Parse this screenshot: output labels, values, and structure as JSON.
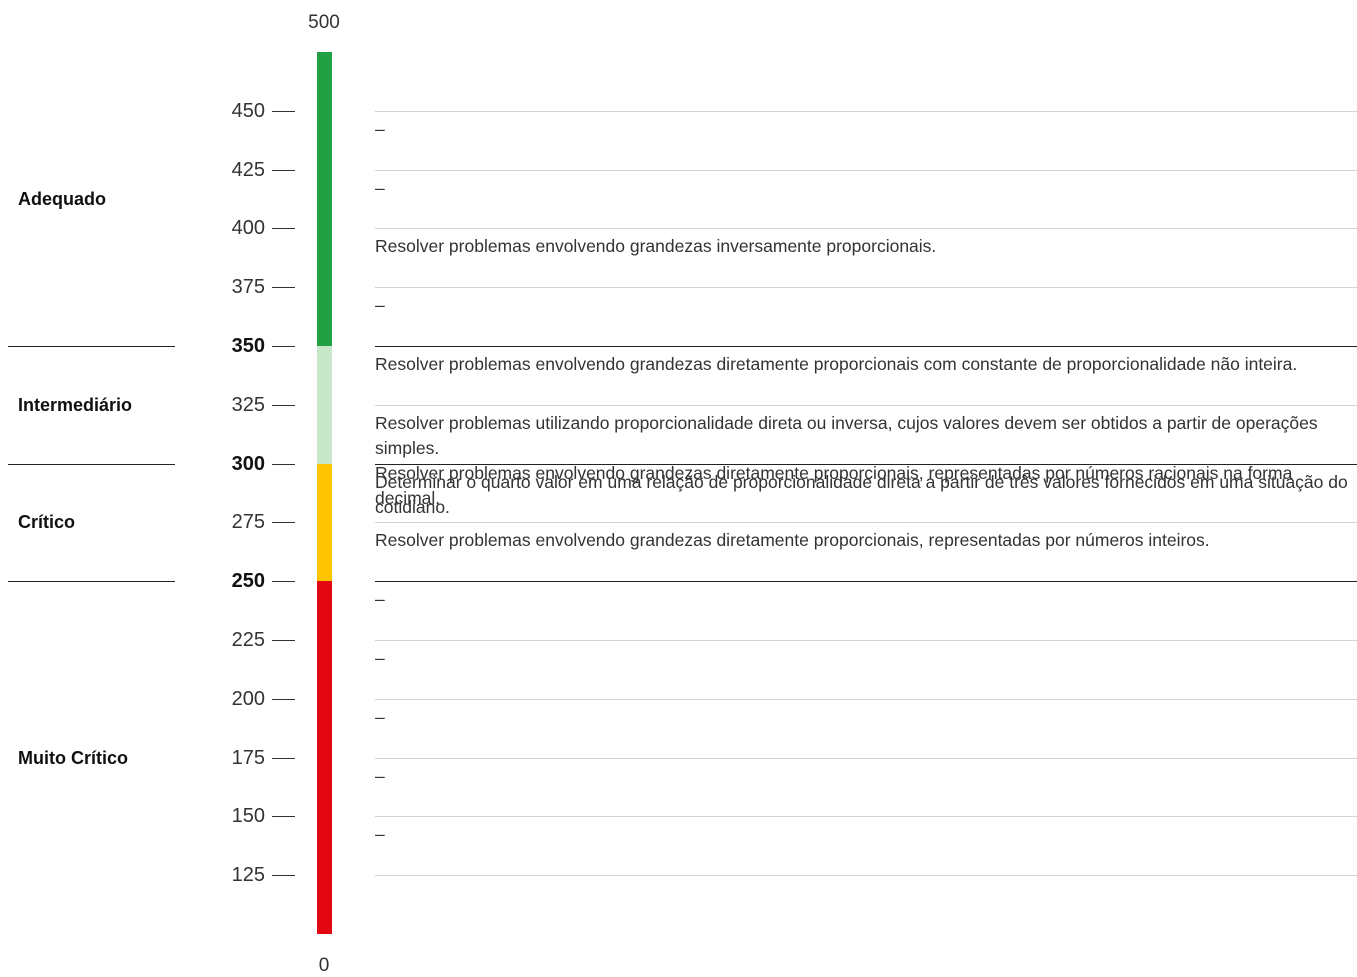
{
  "scale": {
    "min_label": "0",
    "max_label": "500",
    "min": 100,
    "max": 475,
    "ticks": [
      {
        "value": 450,
        "label": "450",
        "major": false
      },
      {
        "value": 425,
        "label": "425",
        "major": false
      },
      {
        "value": 400,
        "label": "400",
        "major": false
      },
      {
        "value": 375,
        "label": "375",
        "major": false
      },
      {
        "value": 350,
        "label": "350",
        "major": true
      },
      {
        "value": 325,
        "label": "325",
        "major": false
      },
      {
        "value": 300,
        "label": "300",
        "major": true
      },
      {
        "value": 275,
        "label": "275",
        "major": false
      },
      {
        "value": 250,
        "label": "250",
        "major": true
      },
      {
        "value": 225,
        "label": "225",
        "major": false
      },
      {
        "value": 200,
        "label": "200",
        "major": false
      },
      {
        "value": 175,
        "label": "175",
        "major": false
      },
      {
        "value": 150,
        "label": "150",
        "major": false
      },
      {
        "value": 125,
        "label": "125",
        "major": false
      }
    ]
  },
  "levels": [
    {
      "name": "Adequado",
      "from": 350,
      "to": 475,
      "color": "#22a043"
    },
    {
      "name": "Intermediário",
      "from": 300,
      "to": 350,
      "color": "#c8e6c9"
    },
    {
      "name": "Crítico",
      "from": 250,
      "to": 300,
      "color": "#ffc400"
    },
    {
      "name": "Muito Crítico",
      "from": 100,
      "to": 250,
      "color": "#e30613"
    }
  ],
  "bands": [
    {
      "from": 425,
      "to": 450,
      "texts": [
        "–"
      ]
    },
    {
      "from": 400,
      "to": 425,
      "texts": [
        "–"
      ]
    },
    {
      "from": 375,
      "to": 400,
      "texts": [
        "Resolver problemas envolvendo grandezas inversamente proporcionais."
      ]
    },
    {
      "from": 350,
      "to": 375,
      "texts": [
        "–"
      ]
    },
    {
      "from": 325,
      "to": 350,
      "texts": [
        "Resolver problemas envolvendo grandezas diretamente proporcionais com constante de proporcionalidade não inteira."
      ]
    },
    {
      "from": 300,
      "to": 325,
      "texts": [
        "Resolver problemas utilizando proporcionalidade direta ou inversa, cujos valores devem ser obtidos a partir de operações simples.",
        "Resolver problemas envolvendo grandezas diretamente proporcionais, representadas por números racionais na forma decimal."
      ]
    },
    {
      "from": 275,
      "to": 300,
      "texts": [
        "Determinar o quarto valor em uma relação de proporcionalidade direta a partir de três valores fornecidos em uma situação do cotidiano."
      ]
    },
    {
      "from": 250,
      "to": 275,
      "texts": [
        "Resolver problemas envolvendo grandezas diretamente proporcionais, representadas por números inteiros."
      ]
    },
    {
      "from": 225,
      "to": 250,
      "texts": [
        "–"
      ]
    },
    {
      "from": 200,
      "to": 225,
      "texts": [
        "–"
      ]
    },
    {
      "from": 175,
      "to": 200,
      "texts": [
        "–"
      ]
    },
    {
      "from": 150,
      "to": 175,
      "texts": [
        "–"
      ]
    },
    {
      "from": 125,
      "to": 150,
      "texts": [
        "–"
      ]
    }
  ]
}
